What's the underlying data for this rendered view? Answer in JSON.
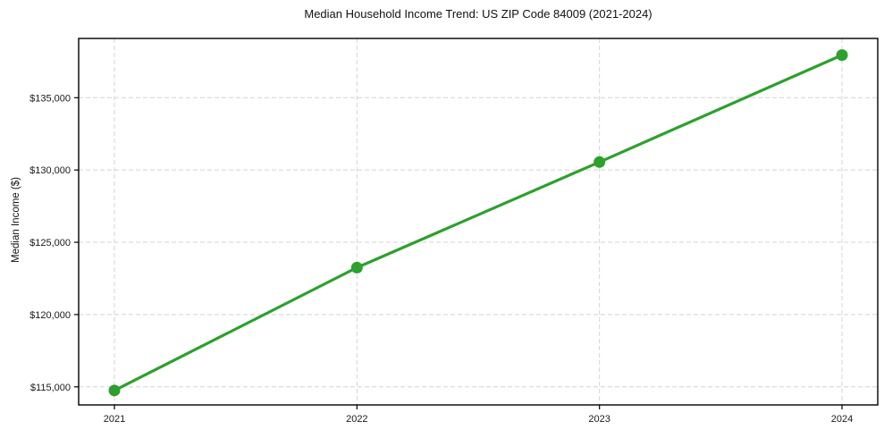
{
  "chart_data": {
    "type": "line",
    "title": "Median Household Income Trend: US ZIP Code 84009 (2021-2024)",
    "xlabel": "",
    "ylabel": "Median Income ($)",
    "categories": [
      "2021",
      "2022",
      "2023",
      "2024"
    ],
    "series": [
      {
        "name": "Median Household Income",
        "values": [
          114750,
          123250,
          130550,
          137950
        ]
      }
    ],
    "ytick_values": [
      115000,
      120000,
      125000,
      130000,
      135000
    ],
    "ytick_labels": [
      "$115,000",
      "$120,000",
      "$125,000",
      "$130,000",
      "$135,000"
    ],
    "ylim": [
      113750,
      139100
    ],
    "grid": true,
    "grid_style": "dashed",
    "legend_position": "none",
    "line_color": "#2da02d",
    "marker_color": "#2da02d",
    "marker_shape": "circle",
    "grid_color": "#d4d4d4",
    "axis_color": "#000000",
    "text_color": "#191919",
    "background": "#ffffff"
  }
}
